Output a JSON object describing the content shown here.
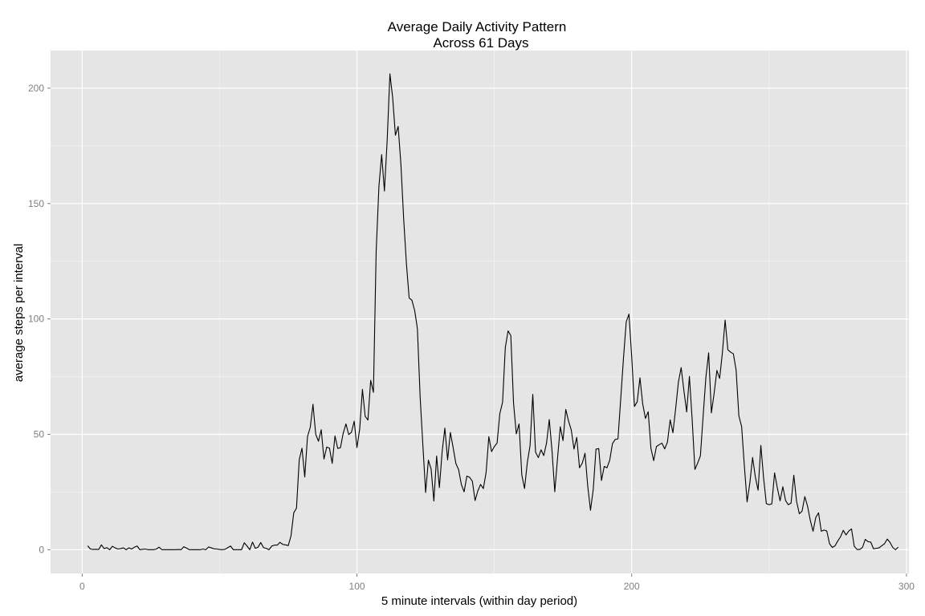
{
  "chart_data": {
    "type": "line",
    "title": "Average Daily Activity Pattern",
    "subtitle": "Across 61 Days",
    "xlabel": "5 minute intervals (within day period)",
    "ylabel": "average steps per interval",
    "xlim": [
      -11.5,
      300.9
    ],
    "ylim": [
      -10.3,
      216.3
    ],
    "x_ticks": [
      0,
      100,
      200,
      300
    ],
    "y_ticks": [
      0,
      50,
      100,
      150,
      200
    ],
    "grid": true,
    "panel_background": "#e5e5e5",
    "grid_color": "#ffffff",
    "line_color": "#000000",
    "series": [
      {
        "values": [
          1.7,
          0.3,
          0.1,
          0.2,
          0.1,
          2.1,
          0.5,
          0.9,
          0.0,
          1.5,
          0.8,
          0.3,
          0.5,
          0.8,
          0.0,
          0.8,
          0.3,
          1.1,
          1.6,
          0.0,
          0.2,
          0.3,
          0.0,
          0.0,
          0.0,
          0.3,
          1.1,
          0.0,
          0.0,
          0.0,
          0.0,
          0.0,
          0.0,
          0.1,
          0.0,
          1.3,
          0.7,
          0.0,
          0.0,
          0.0,
          0.0,
          0.0,
          0.3,
          0.0,
          1.2,
          0.8,
          0.4,
          0.3,
          0.1,
          0.0,
          0.2,
          0.9,
          1.6,
          0.0,
          0.0,
          0.0,
          0.0,
          3.0,
          1.6,
          0.0,
          3.3,
          0.6,
          1.1,
          3.1,
          0.9,
          0.6,
          0.0,
          1.6,
          2.0,
          2.0,
          3.2,
          2.3,
          2.1,
          1.8,
          6.0,
          16.0,
          18.0,
          39.0,
          44.0,
          31.5,
          49.0,
          53.0,
          63.0,
          50.0,
          47.0,
          52.0,
          39.3,
          44.5,
          44.0,
          37.4,
          49.3,
          43.9,
          44.2,
          50.5,
          54.5,
          49.9,
          50.9,
          55.7,
          44.3,
          52.3,
          69.5,
          57.8,
          56.2,
          73.4,
          68.2,
          129.4,
          157.5,
          171.2,
          155.4,
          177.3,
          206.2,
          195.9,
          179.6,
          183.4,
          167.0,
          143.5,
          124.0,
          109.1,
          108.1,
          103.7,
          95.9,
          66.2,
          45.2,
          24.8,
          38.8,
          34.9,
          21.1,
          40.6,
          26.9,
          42.4,
          52.7,
          38.9,
          50.8,
          44.3,
          37.4,
          34.7,
          28.3,
          25.1,
          31.9,
          31.4,
          29.7,
          21.3,
          25.5,
          28.3,
          26.5,
          33.4,
          49.0,
          42.5,
          44.7,
          46.2,
          59.0,
          63.9,
          87.6,
          94.8,
          92.8,
          63.4,
          50.2,
          54.5,
          32.4,
          26.5,
          37.7,
          45.1,
          67.3,
          42.3,
          39.9,
          43.3,
          40.8,
          46.2,
          56.4,
          42.8,
          25.1,
          39.5,
          53.3,
          47.3,
          60.8,
          55.8,
          51.9,
          43.6,
          48.7,
          35.5,
          37.5,
          41.8,
          27.5,
          17.1,
          26.1,
          43.6,
          43.8,
          30.0,
          36.1,
          35.5,
          38.8,
          46.0,
          47.8,
          48.0,
          65.3,
          82.9,
          98.7,
          102.1,
          83.6,
          62.1,
          64.1,
          74.5,
          63.2,
          56.9,
          59.8,
          43.9,
          38.6,
          44.7,
          45.5,
          46.2,
          43.7,
          46.6,
          56.3,
          50.7,
          61.2,
          72.7,
          78.9,
          68.9,
          59.7,
          75.1,
          56.5,
          34.8,
          37.5,
          40.7,
          58.0,
          74.7,
          85.3,
          59.3,
          67.8,
          77.7,
          74.2,
          85.3,
          99.5,
          86.6,
          85.6,
          84.9,
          77.8,
          58.0,
          53.4,
          36.3,
          20.7,
          29.0,
          40.0,
          31.5,
          25.8,
          45.2,
          31.1,
          20.0,
          19.5,
          19.9,
          33.3,
          26.8,
          21.2,
          27.3,
          21.3,
          19.5,
          20.2,
          32.3,
          21.0,
          15.6,
          16.7,
          23.0,
          18.9,
          12.7,
          8.0,
          14.0,
          16.0,
          8.0,
          8.5,
          8.1,
          2.6,
          1.0,
          1.7,
          3.8,
          5.6,
          8.4,
          6.4,
          8.1,
          9.0,
          1.5,
          0.1,
          0.1,
          1.0,
          4.5,
          3.5,
          3.3,
          0.4,
          0.6,
          0.8,
          1.7,
          2.6,
          4.6,
          3.2,
          1.0,
          0.0,
          1.1
        ],
        "x_start": 2,
        "x_step": 1
      }
    ]
  }
}
